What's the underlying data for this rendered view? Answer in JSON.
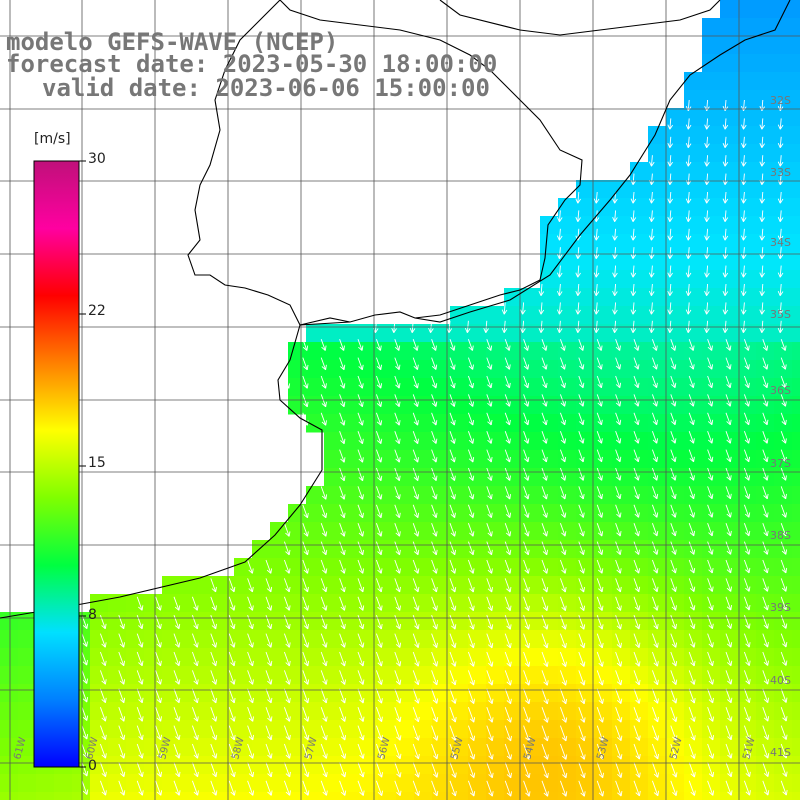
{
  "title": {
    "line1": "modelo GEFS-WAVE (NCEP)",
    "line2": "forecast date: 2023-05-30 18:00:00",
    "line3": "valid date: 2023-06-06 15:00:00"
  },
  "colorbar": {
    "unit": "[m/s]",
    "ticks": [
      "30",
      "22",
      "15",
      "8",
      "0"
    ],
    "colors": [
      "#0000ff",
      "#0080ff",
      "#00e0ff",
      "#00ff40",
      "#80ff00",
      "#ffff00",
      "#ff8000",
      "#ff0000",
      "#ff00a0",
      "#c0107a"
    ]
  },
  "map": {
    "lon_labels": [
      "61W",
      "60W",
      "59W",
      "58W",
      "57W",
      "56W",
      "55W",
      "54W",
      "53W",
      "52W",
      "51W"
    ],
    "lat_labels": [
      "32S",
      "33S",
      "34S",
      "35S",
      "36S",
      "37S",
      "38S",
      "39S",
      "40S",
      "41S"
    ],
    "field": "wind speed with direction arrows"
  }
}
